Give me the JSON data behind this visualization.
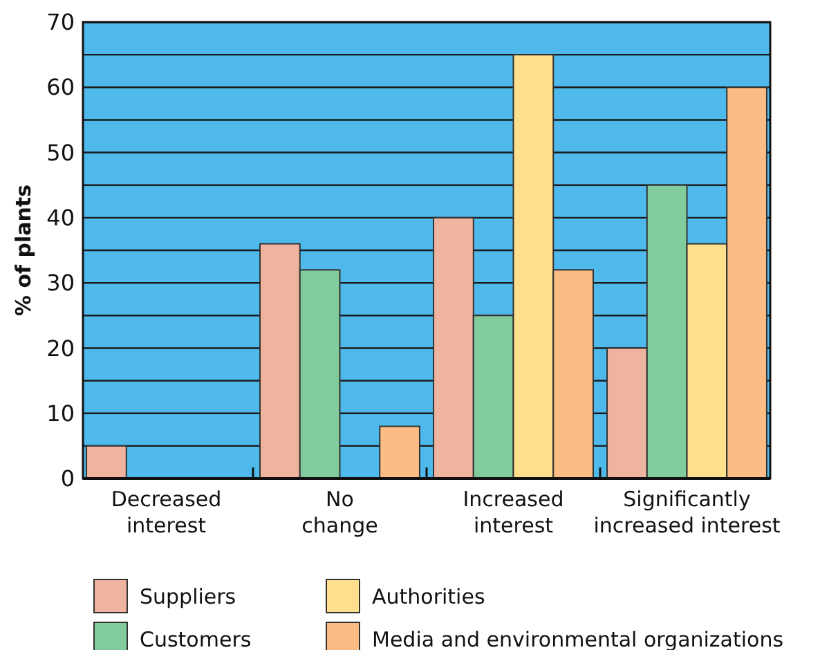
{
  "chart_data": {
    "type": "bar",
    "ylabel": "% of plants",
    "categories": [
      "Decreased interest",
      "No change",
      "Increased interest",
      "Significantly increased interest"
    ],
    "series": [
      {
        "name": "Suppliers",
        "color": "#efb49f",
        "values": [
          5,
          36,
          40,
          20
        ]
      },
      {
        "name": "Customers",
        "color": "#82cb9c",
        "values": [
          0,
          32,
          25,
          45
        ]
      },
      {
        "name": "Authorities",
        "color": "#fddf8c",
        "values": [
          0,
          0,
          65,
          36
        ]
      },
      {
        "name": "Media and environmental organizations",
        "color": "#fbbc86",
        "values": [
          0,
          8,
          32,
          60
        ]
      }
    ],
    "ylim": [
      0,
      70
    ],
    "yticks": [
      0,
      {
        "value": 5,
        "label": null
      },
      10,
      {
        "value": 15,
        "label": null
      },
      20,
      {
        "value": 25,
        "label": null
      },
      30,
      {
        "value": 35,
        "label": null
      },
      40,
      {
        "value": 45,
        "label": null
      },
      50,
      {
        "value": 55,
        "label": null
      },
      60,
      {
        "value": 65,
        "label": null
      },
      70
    ],
    "grid": "y",
    "legend": "bottom"
  }
}
